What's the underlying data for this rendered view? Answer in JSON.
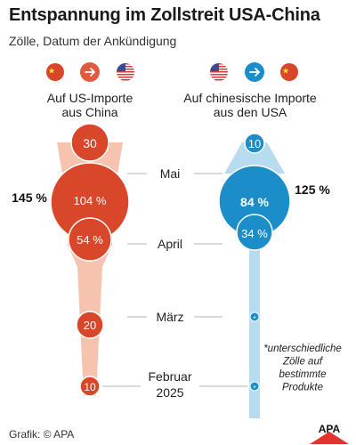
{
  "header": {
    "title": "Entspannung im Zollstreit USA-China",
    "subtitle": "Zölle, Datum der Ankündigung"
  },
  "colors": {
    "china_red": "#d9472b",
    "china_red_light": "#f6c3ae",
    "us_blue": "#1b8dc9",
    "us_blue_light": "#b7dbef",
    "arrow_bg": "#e05a3e",
    "us_flag_blue": "#3c4a8e",
    "us_flag_red": "#d33b3b"
  },
  "icons": {
    "left": [
      "china-flag-icon",
      "arrow-right-icon",
      "us-flag-icon"
    ],
    "right": [
      "us-flag-icon",
      "arrow-right-icon",
      "china-flag-icon"
    ]
  },
  "chart_data": {
    "type": "bubble-timeline",
    "timeline_labels": [
      "Mai",
      "April",
      "März",
      "Februar\n2025"
    ],
    "series": [
      {
        "name": "Auf US-Importe aus China",
        "label_lines": [
          "Auf US-Importe",
          "aus China"
        ],
        "color": "#d9472b",
        "total_label": "145 %",
        "tariffs": [
          {
            "label": "30",
            "value": 30,
            "date": "Mai"
          },
          {
            "label": "104 %",
            "value": 104,
            "date": "April"
          },
          {
            "label": "54 %",
            "value": 54,
            "date": "April"
          },
          {
            "label": "20",
            "value": 20,
            "date": "März"
          },
          {
            "label": "10",
            "value": 10,
            "date": "Februar 2025"
          }
        ]
      },
      {
        "name": "Auf chinesische Importe aus den USA",
        "label_lines": [
          "Auf chinesische Importe",
          "aus den USA"
        ],
        "color": "#1b8dc9",
        "total_label": "125 %",
        "tariffs": [
          {
            "label": "10",
            "value": 10,
            "date": "Mai"
          },
          {
            "label": "84 %",
            "value": 84,
            "date": "April"
          },
          {
            "label": "34 %",
            "value": 34,
            "date": "April"
          },
          {
            "label": "*",
            "date": "März"
          },
          {
            "label": "*",
            "date": "Februar 2025"
          }
        ]
      }
    ],
    "note": "*unterschiedliche Zölle auf bestimmte Produkte"
  },
  "footer": {
    "credit": "Grafik: © APA",
    "logo_text": "APA"
  }
}
